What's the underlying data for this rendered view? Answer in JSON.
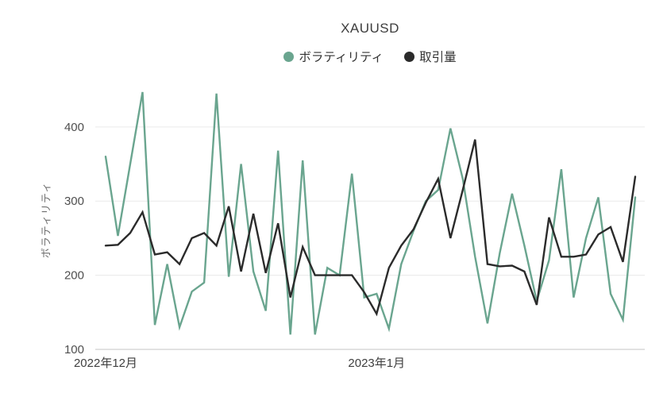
{
  "chart_data": {
    "type": "line",
    "title": "XAUUSD",
    "ylabel": "ボラティリティ",
    "ylim": [
      100,
      448
    ],
    "y_ticks": [
      100,
      200,
      300,
      400
    ],
    "grid": true,
    "legend_position": "top",
    "x_tick_labels": [
      {
        "index": 0,
        "label": "2022年12月"
      },
      {
        "index": 22,
        "label": "2023年1月"
      }
    ],
    "series": [
      {
        "id": "volatility",
        "name": "ボラティリティ",
        "color": "#6aa58f",
        "values": [
          360,
          253,
          350,
          447,
          133,
          215,
          130,
          178,
          190,
          445,
          198,
          350,
          205,
          152,
          368,
          120,
          355,
          120,
          210,
          200,
          337,
          170,
          175,
          128,
          215,
          260,
          300,
          315,
          398,
          330,
          225,
          135,
          230,
          310,
          240,
          165,
          220,
          343,
          170,
          250,
          305,
          175,
          140,
          305
        ]
      },
      {
        "id": "volume",
        "name": "取引量",
        "color": "#2b2b2b",
        "values": [
          240,
          241,
          257,
          285,
          228,
          231,
          215,
          250,
          257,
          240,
          293,
          205,
          283,
          203,
          270,
          170,
          238,
          200,
          200,
          200,
          200,
          177,
          148,
          210,
          240,
          262,
          298,
          330,
          250,
          315,
          383,
          215,
          212,
          213,
          205,
          160,
          278,
          225,
          225,
          228,
          255,
          265,
          218,
          333
        ]
      }
    ]
  }
}
